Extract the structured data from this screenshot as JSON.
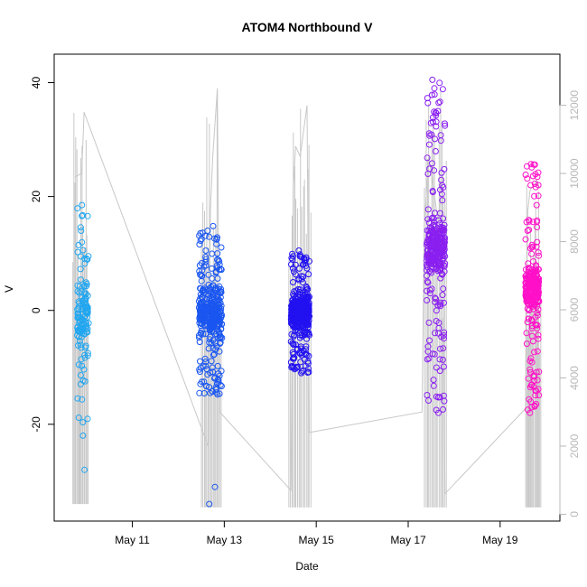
{
  "chart_data": {
    "type": "scatter",
    "title": "ATOM4 Northbound V",
    "xlabel": "Date",
    "ylabel": "V",
    "x_ticks": [
      "May 11",
      "May 13",
      "May 15",
      "May 17",
      "May 19"
    ],
    "x_tick_days": [
      11,
      13,
      15,
      17,
      19
    ],
    "xlim_days": [
      9.3,
      20.3
    ],
    "ylim": [
      -37,
      45
    ],
    "y_ticks": [
      -20,
      0,
      20,
      40
    ],
    "right_axis": {
      "ylim": [
        -200,
        13500
      ],
      "ticks": [
        0,
        2000,
        4000,
        6000,
        8000,
        10000,
        12000
      ],
      "color": "#b8b8b8"
    },
    "background_line": {
      "color": "#c8c8c8",
      "x_days": [
        9.75,
        9.9,
        9.95,
        12.65,
        12.7,
        12.75,
        12.85,
        12.9,
        14.45,
        14.5,
        14.55,
        14.65,
        14.8,
        14.85,
        17.3,
        17.35,
        17.45,
        17.65,
        17.75,
        17.8,
        19.55,
        19.6,
        19.65,
        19.8,
        19.85
      ],
      "y_right": [
        9900,
        10000,
        11800,
        2000,
        9000,
        10500,
        12500,
        3000,
        700,
        9500,
        10800,
        10500,
        12000,
        2400,
        3000,
        8500,
        10500,
        8600,
        10000,
        600,
        3100,
        8900,
        9500,
        9800,
        9600
      ]
    },
    "background_spikes": [
      {
        "range_days": [
          9.7,
          10.05
        ],
        "low": 300,
        "high": 11800
      },
      {
        "range_days": [
          12.5,
          12.95
        ],
        "low": 200,
        "high": 12500
      },
      {
        "range_days": [
          14.4,
          14.9
        ],
        "low": 200,
        "high": 12200
      },
      {
        "range_days": [
          17.35,
          17.85
        ],
        "low": 200,
        "high": 12500
      },
      {
        "range_days": [
          19.55,
          19.9
        ],
        "low": 200,
        "high": 10100
      }
    ],
    "series": [
      {
        "color": "#22a6f0",
        "x_range_days": [
          9.8,
          10.05
        ],
        "core_y": [
          -20,
          18
        ],
        "spread": 8,
        "count": 130,
        "extremes": [
          18.5,
          -28,
          14,
          -22
        ]
      },
      {
        "color": "#1a56f0",
        "x_range_days": [
          12.45,
          12.95
        ],
        "core_y": [
          -15,
          14
        ],
        "spread": 6,
        "count": 380,
        "extremes": [
          -34,
          14.8,
          -31,
          9
        ]
      },
      {
        "color": "#2211f0",
        "x_range_days": [
          14.45,
          14.85
        ],
        "core_y": [
          -11,
          10
        ],
        "spread": 4,
        "count": 420,
        "extremes": [
          10.5,
          -11
        ]
      },
      {
        "color": "#8a1ff0",
        "x_range_days": [
          17.4,
          17.8
        ],
        "core_y": [
          -18,
          40
        ],
        "spread": 7,
        "count": 330,
        "extremes": [
          40.5,
          39,
          35,
          -18
        ]
      },
      {
        "color": "#ff11c8",
        "x_range_days": [
          19.55,
          19.85
        ],
        "core_y": [
          -18,
          26
        ],
        "spread": 5,
        "count": 290,
        "extremes": [
          25.7,
          22,
          -18,
          -17
        ]
      }
    ]
  }
}
